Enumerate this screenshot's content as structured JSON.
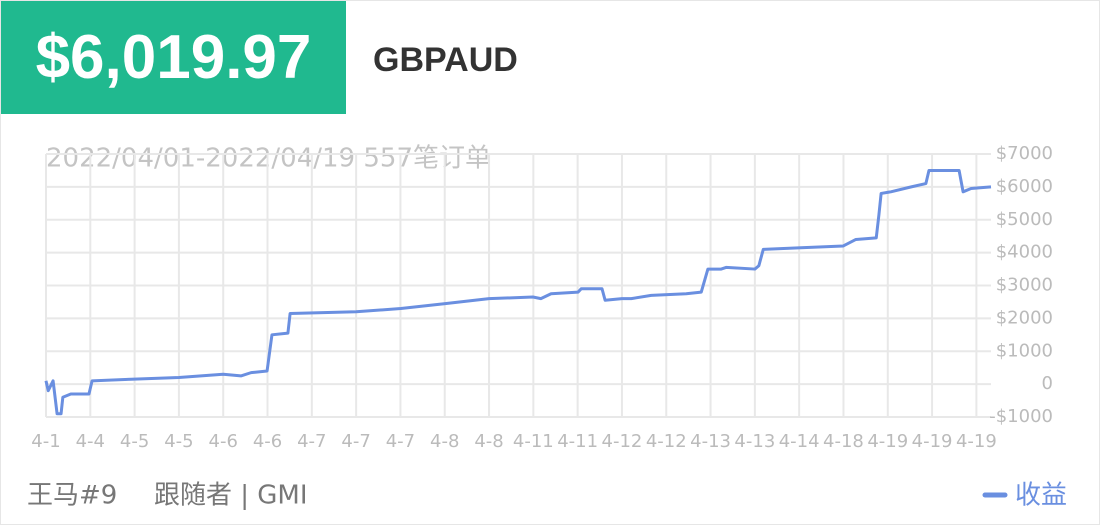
{
  "header": {
    "amount": "$6,019.97",
    "symbol": "GBPAUD"
  },
  "footer": {
    "user": "王马#9",
    "role": "跟随者 | GMI"
  },
  "chart_data": {
    "type": "line",
    "subtitle": "2022/04/01-2022/04/19 557笔订单",
    "xlim": [
      0,
      21.33
    ],
    "xticks": [
      {
        "value": 0,
        "label": "4-1"
      },
      {
        "value": 1,
        "label": "4-4"
      },
      {
        "value": 2,
        "label": "4-5"
      },
      {
        "value": 3,
        "label": "4-5"
      },
      {
        "value": 4,
        "label": "4-6"
      },
      {
        "value": 5,
        "label": "4-6"
      },
      {
        "value": 6,
        "label": "4-7"
      },
      {
        "value": 7,
        "label": "4-7"
      },
      {
        "value": 8,
        "label": "4-7"
      },
      {
        "value": 9,
        "label": "4-8"
      },
      {
        "value": 10,
        "label": "4-8"
      },
      {
        "value": 11,
        "label": "4-11"
      },
      {
        "value": 12,
        "label": "4-11"
      },
      {
        "value": 13,
        "label": "4-12"
      },
      {
        "value": 14,
        "label": "4-12"
      },
      {
        "value": 15,
        "label": "4-13"
      },
      {
        "value": 16,
        "label": "4-13"
      },
      {
        "value": 17,
        "label": "4-14"
      },
      {
        "value": 18,
        "label": "4-18"
      },
      {
        "value": 19,
        "label": "4-19"
      },
      {
        "value": 20,
        "label": "4-19"
      },
      {
        "value": 21,
        "label": "4-19"
      }
    ],
    "ylim": [
      -1000,
      7000
    ],
    "yticks": [
      {
        "value": 7000,
        "label": "$7000"
      },
      {
        "value": 6000,
        "label": "$6000"
      },
      {
        "value": 5000,
        "label": "$5000"
      },
      {
        "value": 4000,
        "label": "$4000"
      },
      {
        "value": 3000,
        "label": "$3000"
      },
      {
        "value": 2000,
        "label": "$2000"
      },
      {
        "value": 1000,
        "label": "$1000"
      },
      0,
      {
        "value": -1000,
        "label": "-$1000"
      }
    ],
    "grid": true,
    "legend": "bottom-right",
    "series": [
      {
        "name": "收益",
        "color": "#6a8fe0",
        "x": [
          0,
          0.05,
          0.16,
          0.25,
          0.34,
          0.38,
          0.56,
          0.97,
          1.04,
          1.92,
          3.0,
          4.0,
          4.4,
          4.63,
          4.99,
          5.1,
          5.46,
          5.51,
          7.0,
          8.01,
          9.01,
          10.0,
          10.99,
          11.17,
          11.4,
          12.01,
          12.08,
          12.55,
          12.62,
          13.0,
          13.21,
          13.66,
          14.45,
          14.79,
          14.94,
          15.24,
          15.35,
          16.0,
          16.09,
          16.19,
          17.04,
          17.99,
          18.28,
          18.74,
          18.8,
          18.85,
          19.07,
          19.53,
          19.86,
          19.93,
          20.61,
          20.7,
          20.88,
          21.33
        ],
        "values": [
          100,
          -200,
          100,
          -900,
          -900,
          -400,
          -300,
          -300,
          100,
          150,
          200,
          300,
          250,
          350,
          400,
          1500,
          1550,
          2150,
          2200,
          2300,
          2450,
          2600,
          2650,
          2600,
          2750,
          2800,
          2900,
          2900,
          2550,
          2600,
          2600,
          2700,
          2750,
          2800,
          3500,
          3500,
          3550,
          3500,
          3600,
          4100,
          4150,
          4200,
          4400,
          4450,
          5150,
          5800,
          5850,
          6000,
          6100,
          6500,
          6500,
          5850,
          5950,
          6000
        ]
      }
    ]
  }
}
